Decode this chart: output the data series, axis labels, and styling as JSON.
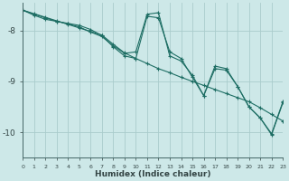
{
  "xlabel": "Humidex (Indice chaleur)",
  "bg_color": "#cde8e8",
  "grid_color": "#aacccc",
  "line_color": "#1e6e64",
  "xlim": [
    0,
    23
  ],
  "ylim": [
    -10.5,
    -7.45
  ],
  "yticks": [
    -10,
    -9,
    -8
  ],
  "xticks": [
    0,
    1,
    2,
    3,
    4,
    5,
    6,
    7,
    8,
    9,
    10,
    11,
    12,
    13,
    14,
    15,
    16,
    17,
    18,
    19,
    20,
    21,
    22,
    23
  ],
  "series": [
    {
      "x": [
        0,
        1,
        2,
        3,
        4,
        5,
        6,
        7,
        8,
        9,
        10,
        11,
        12,
        13,
        14,
        15,
        16,
        17,
        18,
        19,
        20,
        21,
        22,
        23
      ],
      "y": [
        -7.6,
        -7.67,
        -7.74,
        -7.81,
        -7.88,
        -7.95,
        -8.02,
        -8.09,
        -8.27,
        -8.44,
        -8.55,
        -8.65,
        -8.75,
        -8.83,
        -8.92,
        -9.0,
        -9.08,
        -9.16,
        -9.24,
        -9.32,
        -9.4,
        -9.52,
        -9.65,
        -9.78
      ]
    },
    {
      "x": [
        0,
        1,
        2,
        3,
        4,
        5,
        6,
        7,
        8,
        9,
        10,
        11,
        12,
        13,
        14,
        15,
        16,
        17,
        18,
        19,
        20,
        21,
        22,
        23
      ],
      "y": [
        -7.6,
        -7.7,
        -7.78,
        -7.82,
        -7.86,
        -7.9,
        -7.98,
        -8.1,
        -8.32,
        -8.5,
        -8.55,
        -7.72,
        -7.75,
        -8.42,
        -8.55,
        -8.92,
        -9.28,
        -8.75,
        -8.78,
        -9.1,
        -9.5,
        -9.72,
        -10.05,
        -9.42
      ]
    },
    {
      "x": [
        0,
        1,
        2,
        3,
        4,
        5,
        6,
        7,
        8,
        9,
        10,
        11,
        12,
        13,
        14,
        15,
        16,
        17,
        18,
        19,
        20,
        21,
        22,
        23
      ],
      "y": [
        -7.6,
        -7.68,
        -7.75,
        -7.82,
        -7.87,
        -7.93,
        -8.03,
        -8.12,
        -8.3,
        -8.45,
        -8.42,
        -7.68,
        -7.65,
        -8.5,
        -8.6,
        -8.88,
        -9.28,
        -8.7,
        -8.75,
        -9.1,
        -9.5,
        -9.72,
        -10.03,
        -9.4
      ]
    }
  ]
}
